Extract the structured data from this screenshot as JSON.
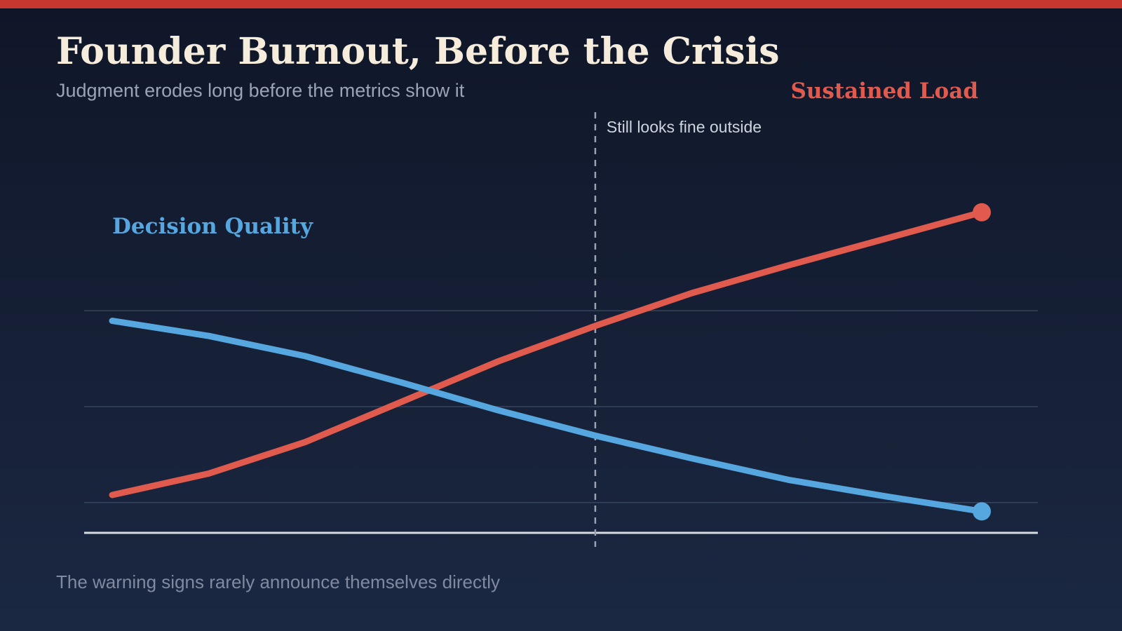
{
  "header": {
    "title": "Founder Burnout, Before the Crisis",
    "subtitle": "Judgment erodes long before the metrics show it"
  },
  "footer": {
    "note": "The warning signs rarely announce themselves directly"
  },
  "colors": {
    "accent_bar": "#c8372d",
    "sustained_load": "#e05a4e",
    "decision_quality": "#56a6e0",
    "gridline": "#35445d",
    "baseline": "#d7dbe2",
    "marker_line": "#9aa3b2"
  },
  "chart_data": {
    "type": "line",
    "x": [
      0,
      1,
      2,
      3,
      4,
      5,
      6,
      7,
      8,
      9
    ],
    "xlim": [
      0,
      9
    ],
    "ylim": [
      0,
      100
    ],
    "gridlines": [
      12,
      50,
      88
    ],
    "grid": true,
    "legend": "direct-labels",
    "series": [
      {
        "name": "Sustained Load",
        "values": [
          15,
          23.5,
          36,
          52,
          68,
          82,
          95,
          106,
          116.5,
          127
        ],
        "end_marker": true
      },
      {
        "name": "Decision Quality",
        "values": [
          84,
          78,
          70,
          59.5,
          48.5,
          38.5,
          29.5,
          21,
          14.5,
          8.5
        ],
        "end_marker": true
      }
    ],
    "annotations": [
      {
        "x": 5,
        "text": "Still looks fine outside",
        "style": "dashed-vertical"
      }
    ],
    "xlabel": "",
    "ylabel": ""
  }
}
